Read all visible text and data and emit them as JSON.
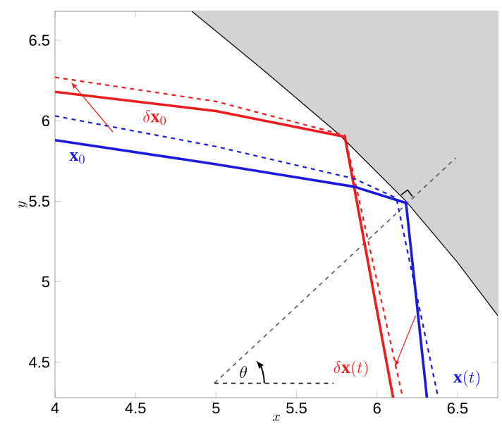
{
  "chart_data": {
    "type": "line",
    "xlabel": "x",
    "ylabel": "y",
    "xlim": [
      4,
      6.75
    ],
    "ylim": [
      4.28,
      6.68
    ],
    "xticks": [
      4,
      4.5,
      5,
      5.5,
      6,
      6.5
    ],
    "yticks": [
      4.5,
      5,
      5.5,
      6,
      6.5
    ],
    "series": [
      {
        "type": "area",
        "color": "#d3d3d3",
        "x": [
          4.85,
          5.3,
          5.77,
          6.18,
          6.5,
          6.75
        ],
        "values": [
          6.68,
          6.31,
          5.91,
          5.5,
          5.12,
          4.79
        ]
      },
      {
        "color": "#555555",
        "line_style": "dashed",
        "x": [
          4.99,
          6.49
        ],
        "values": [
          4.37,
          5.77
        ]
      },
      {
        "color": "#000000",
        "line_style": "dashed",
        "x": [
          4.99,
          5.73
        ],
        "values": [
          4.37,
          4.37
        ]
      },
      {
        "color": "#000000",
        "line_style": "solid",
        "x": [
          6.15,
          6.19,
          6.22
        ],
        "values": [
          5.54,
          5.57,
          5.53
        ]
      },
      {
        "color": "#ee1c1c",
        "line_style": "dashed",
        "x": [
          4,
          5.0,
          5.8,
          6.16
        ],
        "values": [
          6.27,
          6.12,
          5.91,
          4.28
        ]
      },
      {
        "color": "#ee1c1c",
        "line_style": "solid",
        "x": [
          4,
          5.0,
          5.8,
          6.1
        ],
        "values": [
          6.18,
          6.06,
          5.9,
          4.28
        ]
      },
      {
        "color": "#1a1adf",
        "line_style": "dashed",
        "x": [
          4,
          5.0,
          5.86,
          6.12,
          6.38
        ],
        "values": [
          6.03,
          5.84,
          5.64,
          5.52,
          4.28
        ]
      },
      {
        "color": "#1a1adf",
        "line_style": "solid",
        "x": [
          4,
          5.0,
          5.86,
          6.18,
          6.31
        ],
        "values": [
          5.88,
          5.73,
          5.59,
          5.49,
          4.28
        ]
      }
    ],
    "annotations": [
      "\\delta\\mathbf{x}_0",
      "\\mathbf{x}_0",
      "\\delta\\mathbf{x}(t)",
      "\\mathbf{x}(t)",
      "\\theta"
    ]
  }
}
